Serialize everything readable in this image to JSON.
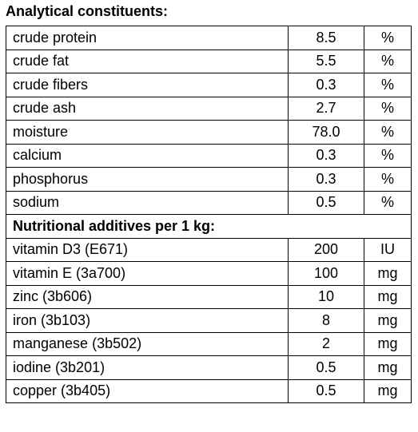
{
  "title": "Analytical constituents:",
  "analytical": {
    "rows": [
      [
        "crude protein",
        "8.5",
        "%"
      ],
      [
        "crude fat",
        "5.5",
        "%"
      ],
      [
        "crude fibers",
        "0.3",
        "%"
      ],
      [
        "crude ash",
        "2.7",
        "%"
      ],
      [
        "moisture",
        "78.0",
        "%"
      ],
      [
        "calcium",
        "0.3",
        "%"
      ],
      [
        "phosphorus",
        "0.3",
        "%"
      ],
      [
        "sodium",
        "0.5",
        "%"
      ]
    ]
  },
  "additives": {
    "heading": "Nutritional additives per 1 kg:",
    "rows": [
      [
        "vitamin D3 (E671)",
        "200",
        "IU"
      ],
      [
        "vitamin E (3a700)",
        "100",
        "mg"
      ],
      [
        "zinc (3b606)",
        "10",
        "mg"
      ],
      [
        "iron (3b103)",
        "8",
        "mg"
      ],
      [
        "manganese (3b502)",
        "2",
        "mg"
      ],
      [
        "iodine (3b201)",
        "0.5",
        "mg"
      ],
      [
        "copper (3b405)",
        "0.5",
        "mg"
      ]
    ]
  }
}
